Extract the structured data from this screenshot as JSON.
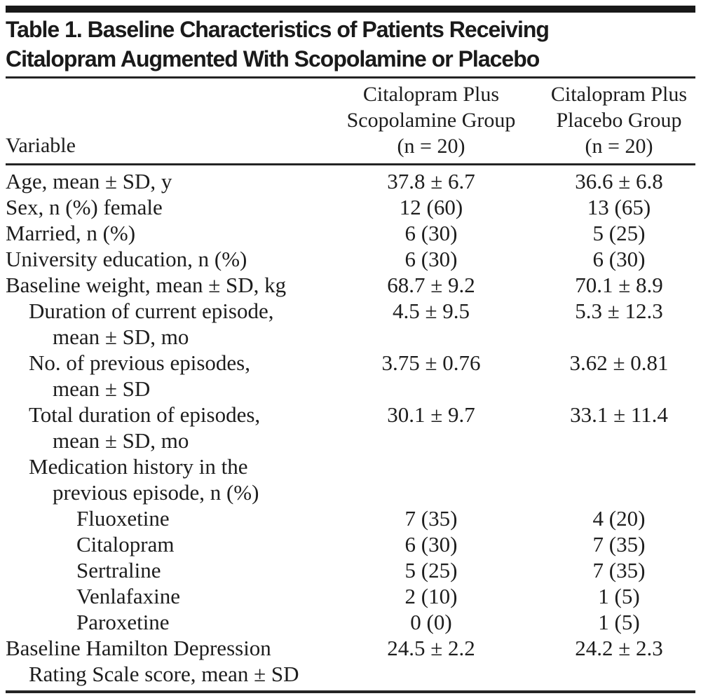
{
  "table": {
    "title": {
      "line1": "Table 1. Baseline Characteristics of Patients Receiving",
      "line2": "Citalopram Augmented With Scopolamine or Placebo"
    },
    "header": {
      "variable_label": "Variable",
      "columns": [
        {
          "lines": [
            "Citalopram Plus",
            "Scopolamine Group",
            "(n = 20)"
          ]
        },
        {
          "lines": [
            "Citalopram Plus",
            "Placebo Group",
            "(n = 20)"
          ]
        }
      ]
    },
    "rows": [
      {
        "lines": [
          {
            "text": "Age, mean ± SD, y",
            "indent": 0
          }
        ],
        "scopolamine": "37.8 ± 6.7",
        "placebo": "36.6 ± 6.8"
      },
      {
        "lines": [
          {
            "text": "Sex, n (%) female",
            "indent": 0
          }
        ],
        "scopolamine": "12 (60)",
        "placebo": "13 (65)"
      },
      {
        "lines": [
          {
            "text": "Married, n (%)",
            "indent": 0
          }
        ],
        "scopolamine": "6 (30)",
        "placebo": "5 (25)"
      },
      {
        "lines": [
          {
            "text": "University education, n (%)",
            "indent": 0
          }
        ],
        "scopolamine": "6 (30)",
        "placebo": "6 (30)"
      },
      {
        "lines": [
          {
            "text": "Baseline weight, mean ± SD, kg",
            "indent": 0
          }
        ],
        "scopolamine": "68.7 ± 9.2",
        "placebo": "70.1 ± 8.9"
      },
      {
        "lines": [
          {
            "text": "Duration of current episode,",
            "indent": 1
          },
          {
            "text": "mean ± SD, mo",
            "indent": 2
          }
        ],
        "scopolamine": "4.5 ± 9.5",
        "placebo": "5.3 ± 12.3"
      },
      {
        "lines": [
          {
            "text": "No. of previous episodes,",
            "indent": 1
          },
          {
            "text": "mean ± SD",
            "indent": 2
          }
        ],
        "scopolamine": "3.75 ± 0.76",
        "placebo": "3.62 ± 0.81"
      },
      {
        "lines": [
          {
            "text": "Total duration of episodes,",
            "indent": 1
          },
          {
            "text": "mean ± SD, mo",
            "indent": 2
          }
        ],
        "scopolamine": "30.1 ± 9.7",
        "placebo": "33.1 ± 11.4"
      },
      {
        "lines": [
          {
            "text": "Medication history in the",
            "indent": 1
          },
          {
            "text": "previous episode, n (%)",
            "indent": 2
          }
        ],
        "scopolamine": "",
        "placebo": ""
      },
      {
        "lines": [
          {
            "text": "Fluoxetine",
            "indent": 3
          }
        ],
        "scopolamine": "7 (35)",
        "placebo": "4 (20)"
      },
      {
        "lines": [
          {
            "text": "Citalopram",
            "indent": 3
          }
        ],
        "scopolamine": "6 (30)",
        "placebo": "7 (35)"
      },
      {
        "lines": [
          {
            "text": "Sertraline",
            "indent": 3
          }
        ],
        "scopolamine": "5 (25)",
        "placebo": "7 (35)"
      },
      {
        "lines": [
          {
            "text": "Venlafaxine",
            "indent": 3
          }
        ],
        "scopolamine": "2 (10)",
        "placebo": "1 (5)"
      },
      {
        "lines": [
          {
            "text": "Paroxetine",
            "indent": 3
          }
        ],
        "scopolamine": "0 (0)",
        "placebo": "1 (5)"
      },
      {
        "lines": [
          {
            "text": "Baseline Hamilton Depression",
            "indent": 0
          },
          {
            "text": "Rating Scale score, mean ± SD",
            "indent": 1
          }
        ],
        "scopolamine": "24.5 ± 2.2",
        "placebo": "24.2 ± 2.3"
      }
    ]
  }
}
